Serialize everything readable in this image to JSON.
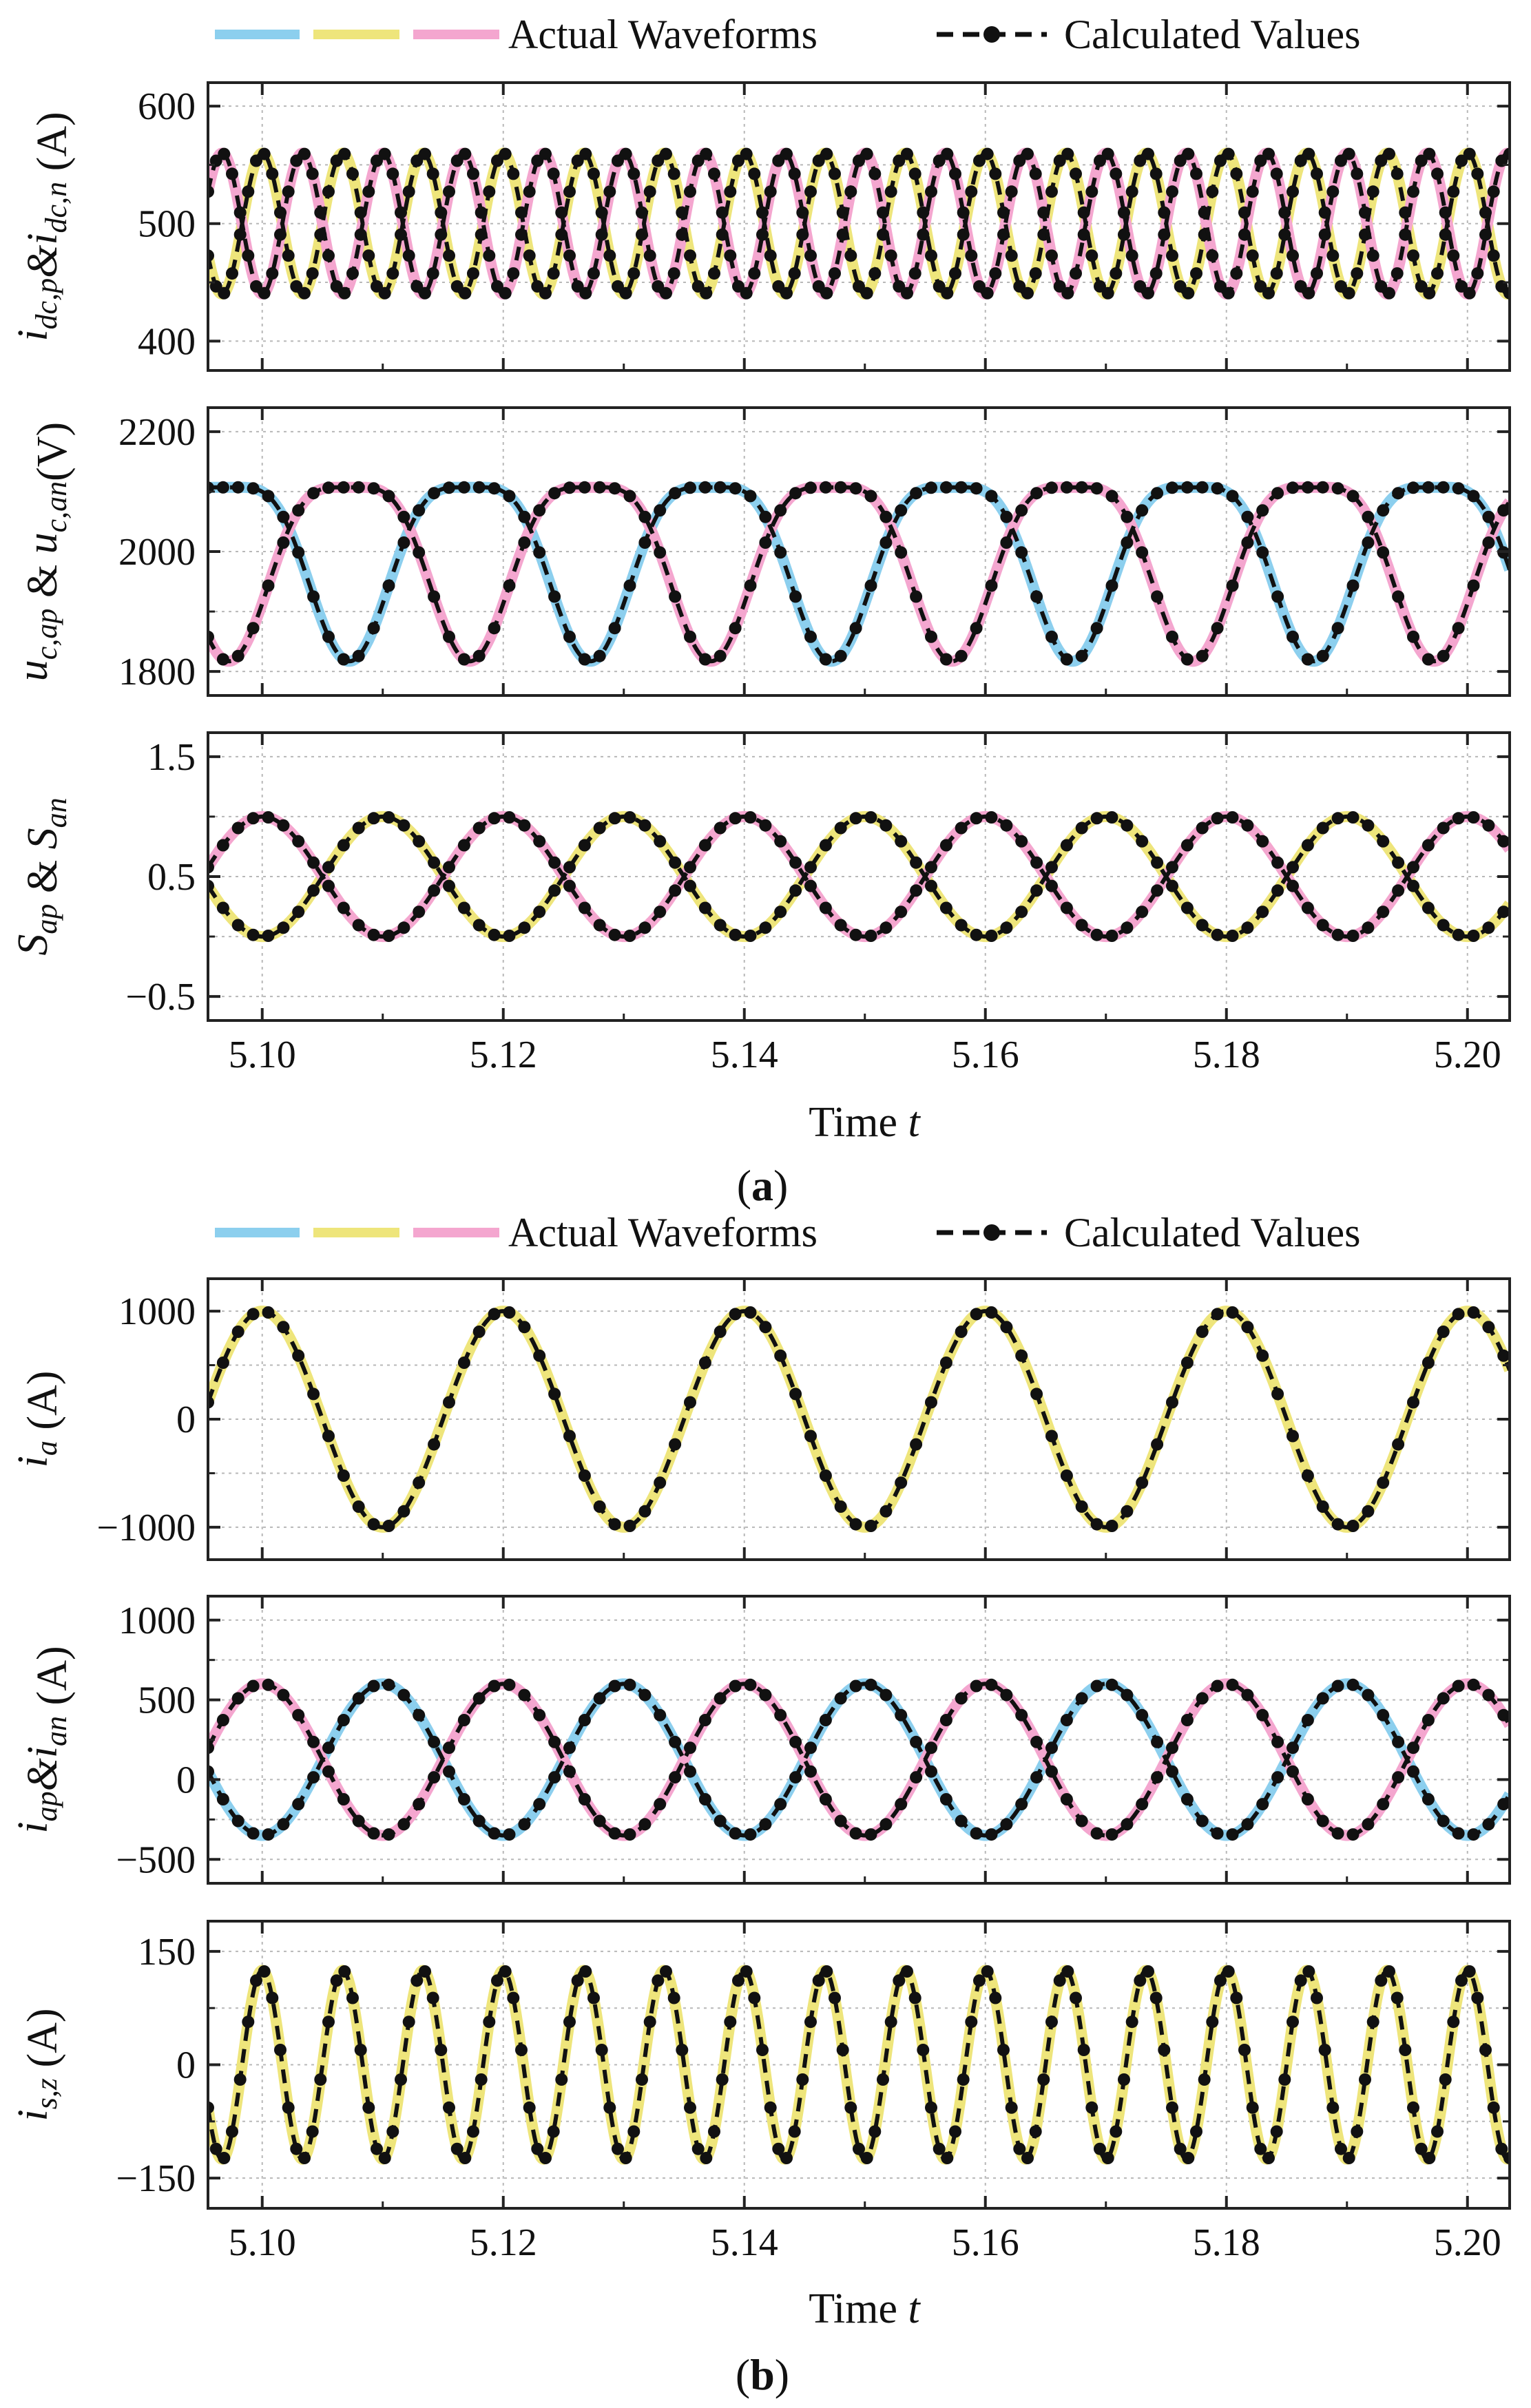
{
  "figure": {
    "legend": {
      "actual": "Actual Waveforms",
      "calculated": "Calculated Values"
    },
    "captions": {
      "a": "a",
      "b": "b"
    },
    "xlabel": {
      "main": "Time",
      "var": "t"
    },
    "colors": {
      "blue": "#8ccfee",
      "yellow": "#eee57b",
      "pink": "#f4a6cf",
      "calc": "#111111",
      "frame": "#222222",
      "grid": "#b8b8b8"
    }
  },
  "chart_data": [
    {
      "id": "p1",
      "type": "line",
      "ylabel": [
        {
          "t": "i"
        },
        {
          "t": "dc,p",
          "sub": true
        },
        {
          "t": "&"
        },
        {
          "t": "i"
        },
        {
          "t": "dc,n",
          "sub": true
        },
        {
          "t": " (A)",
          "roman": true
        }
      ],
      "xlim": [
        5.0955,
        5.2035
      ],
      "ylim": [
        375,
        620
      ],
      "yticks": [
        400,
        500,
        600
      ],
      "ytick_labels": [
        "400",
        "500",
        "600"
      ],
      "xticks": [],
      "xtick_labels": [],
      "series": [
        {
          "name": "i_dc,p",
          "color": "yellow",
          "offset": 500,
          "amp": 60,
          "freq": 150,
          "phase": 90
        },
        {
          "name": "i_dc,n",
          "color": "pink",
          "offset": 500,
          "amp": 60,
          "freq": 150,
          "phase": -90
        }
      ]
    },
    {
      "id": "p2",
      "type": "line",
      "ylabel": [
        {
          "t": "u"
        },
        {
          "t": "c,ap",
          "sub": true
        },
        {
          "t": " & ",
          "roman": true
        },
        {
          "t": "u"
        },
        {
          "t": "c,an",
          "sub": true
        },
        {
          "t": "(V)",
          "roman": true
        }
      ],
      "xlim": [
        5.0955,
        5.2035
      ],
      "ylim": [
        1760,
        2240
      ],
      "yticks": [
        1800,
        2000,
        2200
      ],
      "ytick_labels": [
        "1800",
        "2000",
        "2200"
      ],
      "xticks": [],
      "xtick_labels": [],
      "series": [
        {
          "name": "u_c,ap",
          "color": "blue",
          "offset": 2000,
          "amp": 145,
          "freq": 50,
          "phase": 140,
          "h2amp": 38,
          "h2phase": 10
        },
        {
          "name": "u_c,an",
          "color": "pink",
          "offset": 2000,
          "amp": 145,
          "freq": 50,
          "phase": -40,
          "h2amp": 38,
          "h2phase": 10
        }
      ]
    },
    {
      "id": "p3",
      "type": "line",
      "ylabel": [
        {
          "t": "S"
        },
        {
          "t": "ap",
          "sub": true
        },
        {
          "t": " & ",
          "roman": true
        },
        {
          "t": "S"
        },
        {
          "t": "an",
          "sub": true
        }
      ],
      "xlim": [
        5.0955,
        5.2035
      ],
      "ylim": [
        -0.7,
        1.7
      ],
      "yticks": [
        -0.5,
        0.5,
        1.5
      ],
      "ytick_labels": [
        "−0.5",
        "0.5",
        "1.5"
      ],
      "xticks": [
        5.1,
        5.12,
        5.14,
        5.16,
        5.18,
        5.2
      ],
      "xtick_labels": [
        "5.10",
        "5.12",
        "5.14",
        "5.16",
        "5.18",
        "5.20"
      ],
      "series": [
        {
          "name": "S_ap",
          "color": "yellow",
          "offset": 0.5,
          "amp": 0.5,
          "freq": 50,
          "phase": -90
        },
        {
          "name": "S_an",
          "color": "pink",
          "offset": 0.5,
          "amp": 0.5,
          "freq": 50,
          "phase": 90
        }
      ]
    },
    {
      "id": "p4",
      "type": "line",
      "ylabel": [
        {
          "t": "i"
        },
        {
          "t": "a",
          "sub": true
        },
        {
          "t": " (A)",
          "roman": true
        }
      ],
      "xlim": [
        5.0955,
        5.2035
      ],
      "ylim": [
        -1300,
        1300
      ],
      "yticks": [
        -1000,
        0,
        1000
      ],
      "ytick_labels": [
        "−1000",
        "0",
        "1000"
      ],
      "xticks": [],
      "xtick_labels": [],
      "series": [
        {
          "name": "i_a",
          "color": "yellow",
          "offset": 0,
          "amp": 1000,
          "freq": 50,
          "phase": 90
        }
      ]
    },
    {
      "id": "p5",
      "type": "line",
      "ylabel": [
        {
          "t": "i"
        },
        {
          "t": "ap",
          "sub": true
        },
        {
          "t": "&"
        },
        {
          "t": "i"
        },
        {
          "t": "an",
          "sub": true
        },
        {
          "t": " (A)",
          "roman": true
        }
      ],
      "xlim": [
        5.0955,
        5.2035
      ],
      "ylim": [
        -650,
        1150
      ],
      "yticks": [
        -500,
        0,
        500,
        1000
      ],
      "ytick_labels": [
        "−500",
        "0",
        "500",
        "1000"
      ],
      "xticks": [],
      "xtick_labels": [],
      "series": [
        {
          "name": "i_ap",
          "color": "blue",
          "offset": 125,
          "amp": 475,
          "freq": 50,
          "phase": -90
        },
        {
          "name": "i_an",
          "color": "pink",
          "offset": 125,
          "amp": 475,
          "freq": 50,
          "phase": 90
        }
      ]
    },
    {
      "id": "p6",
      "type": "line",
      "ylabel": [
        {
          "t": "i"
        },
        {
          "t": "s,z",
          "sub": true
        },
        {
          "t": " (A)",
          "roman": true
        }
      ],
      "xlim": [
        5.0955,
        5.2035
      ],
      "ylim": [
        -190,
        190
      ],
      "yticks": [
        -150,
        0,
        150
      ],
      "ytick_labels": [
        "−150",
        "0",
        "150"
      ],
      "xticks": [
        5.1,
        5.12,
        5.14,
        5.16,
        5.18,
        5.2
      ],
      "xtick_labels": [
        "5.10",
        "5.12",
        "5.14",
        "5.16",
        "5.18",
        "5.20"
      ],
      "series": [
        {
          "name": "i_s,z",
          "color": "yellow",
          "offset": 0,
          "amp": 125,
          "freq": 150,
          "phase": 90
        }
      ]
    }
  ]
}
